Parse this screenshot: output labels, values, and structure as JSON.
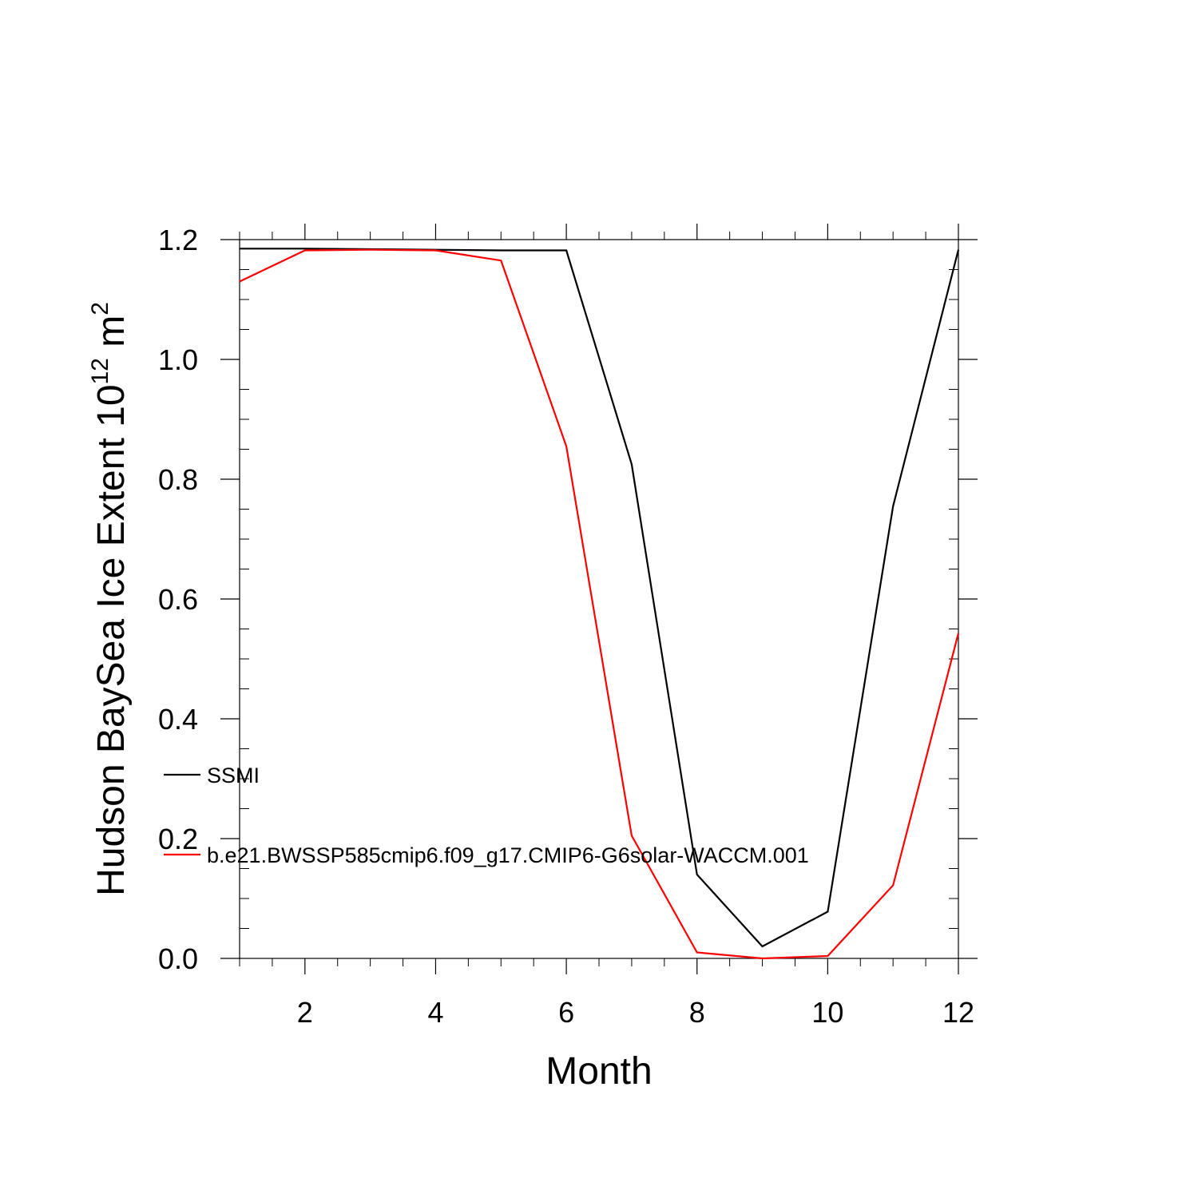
{
  "chart_data": {
    "type": "line",
    "xlabel": "Month",
    "ylabel": {
      "prefix": "Hudson BaySea Ice Extent 10",
      "superscript1": "12",
      "unit": " m",
      "superscript2": "2"
    },
    "xlim": [
      1,
      12
    ],
    "ylim": [
      0.0,
      1.2
    ],
    "x_ticks": [
      2,
      4,
      6,
      8,
      10,
      12
    ],
    "y_ticks": [
      "0.0",
      "0.2",
      "0.4",
      "0.6",
      "0.8",
      "1.0",
      "1.2"
    ],
    "x": [
      1,
      2,
      3,
      4,
      5,
      6,
      7,
      8,
      9,
      10,
      11,
      12
    ],
    "series": [
      {
        "name": "SSMI",
        "color": "#000000",
        "values": [
          1.185,
          1.185,
          1.184,
          1.183,
          1.182,
          1.182,
          0.825,
          0.14,
          0.02,
          0.078,
          0.755,
          1.183
        ]
      },
      {
        "name": "b.e21.BWSSP585cmip6.f09_g17.CMIP6-G6solar-WACCM.001",
        "color": "#ff0000",
        "values": [
          1.13,
          1.182,
          1.183,
          1.182,
          1.165,
          0.855,
          0.205,
          0.01,
          0.0,
          0.004,
          0.122,
          0.543
        ]
      }
    ],
    "legend": "lower-left inside plot",
    "grid": false
  }
}
